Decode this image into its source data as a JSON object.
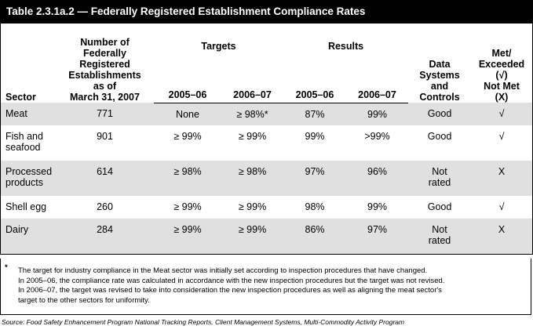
{
  "title": "Table 2.3.1a.2 — Federally Registered Establishment Compliance Rates",
  "headers": {
    "sector": "Sector",
    "count_lines": [
      "Number of",
      "Federally",
      "Registered",
      "Establishments",
      "as of",
      "March 31, 2007"
    ],
    "targets": "Targets",
    "results": "Results",
    "targets_2005": "2005–06",
    "targets_2006": "2006–07",
    "results_2005": "2005–06",
    "results_2006": "2006–07",
    "data_lines": [
      "Data",
      "Systems",
      "and",
      "Controls"
    ],
    "met_lines": [
      "Met/",
      "Exceeded",
      "(√)",
      "Not Met",
      "(X)"
    ]
  },
  "rows": [
    {
      "sector": [
        "Meat"
      ],
      "count": "771",
      "t2005": "None",
      "t2006": "≥ 98%*",
      "r2005": "87%",
      "r2006": "99%",
      "data": [
        "Good"
      ],
      "met": "√"
    },
    {
      "sector": [
        "Fish and",
        "seafood"
      ],
      "count": "901",
      "t2005": "≥ 99%",
      "t2006": "≥ 99%",
      "r2005": "99%",
      "r2006": ">99%",
      "data": [
        "Good"
      ],
      "met": "√"
    },
    {
      "sector": [
        "Processed",
        "products"
      ],
      "count": "614",
      "t2005": "≥ 98%",
      "t2006": "≥ 98%",
      "r2005": "97%",
      "r2006": "96%",
      "data": [
        "Not",
        "rated"
      ],
      "met": "X"
    },
    {
      "sector": [
        "Shell egg"
      ],
      "count": "260",
      "t2005": "≥ 99%",
      "t2006": "≥ 99%",
      "r2005": "98%",
      "r2006": "99%",
      "data": [
        "Good"
      ],
      "met": "√"
    },
    {
      "sector": [
        "Dairy"
      ],
      "count": "284",
      "t2005": "≥ 99%",
      "t2006": "≥ 99%",
      "r2005": "86%",
      "r2006": "97%",
      "data": [
        "Not",
        "rated"
      ],
      "met": "X"
    }
  ],
  "footnote": {
    "mark": "*",
    "lines": [
      "The target for industry compliance in the Meat sector was initially set according to inspection procedures that have changed.",
      "In 2005–06, the compliance rate was calculated in accordance with the new inspection procedures but the target was not revised.",
      "In 2006–07, the target was revised to take into consideration the new inspection procedures as well as aligning the meat sector's",
      "target to the other sectors for uniformity."
    ]
  },
  "source": "Source: Food Safety Enhancement Program National Tracking Reports, Client Management Systems, Multi-Commodity Activity Program"
}
